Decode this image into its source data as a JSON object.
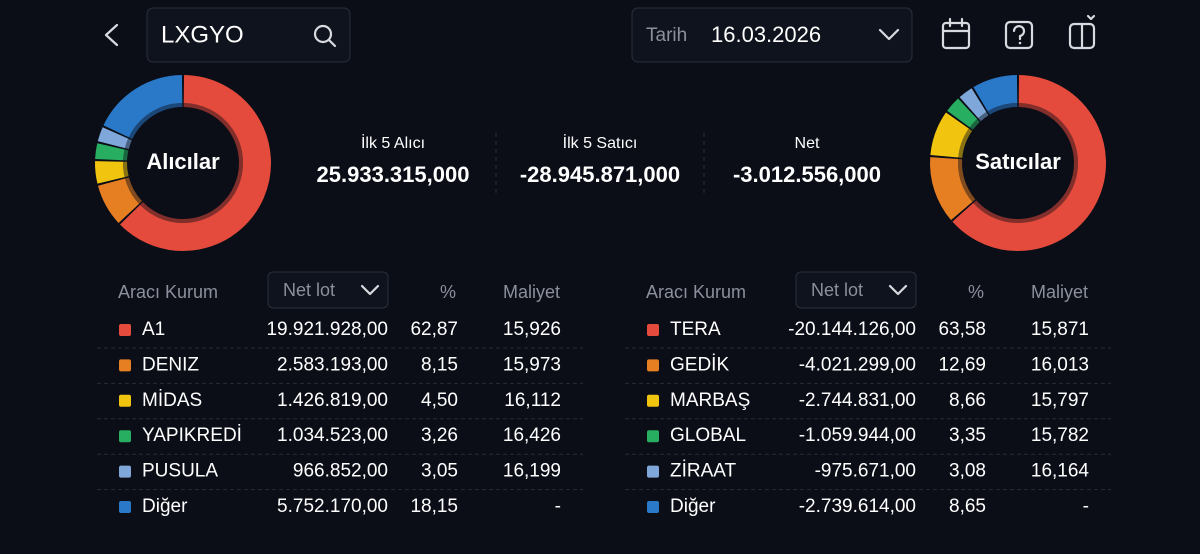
{
  "header": {
    "symbol": "LXGYO",
    "date_label": "Tarih",
    "date": "16.03.2026"
  },
  "summary": [
    {
      "label": "İlk 5 Alıcı",
      "value": "25.933.315,000",
      "color": "#ffffff"
    },
    {
      "label": "İlk 5 Satıcı",
      "value": "-28.945.871,000",
      "color": "#ffffff"
    },
    {
      "label": "Net",
      "value": "-3.012.556,000",
      "color": "#e8493e"
    }
  ],
  "buyers": {
    "title": "Alıcılar",
    "columns": [
      "Aracı Kurum",
      "Net lot",
      "%",
      "Maliyet"
    ],
    "rows": [
      {
        "name": "A1",
        "net_lot": "19.921.928,00",
        "pct": {
          "value": 62.87,
          "label": "62,87"
        },
        "cost": "15,926",
        "color": "#e54b3c"
      },
      {
        "name": "DENIZ",
        "net_lot": "2.583.193,00",
        "pct": {
          "value": 8.15,
          "label": "8,15"
        },
        "cost": "15,973",
        "color": "#e67e22"
      },
      {
        "name": "MİDAS",
        "net_lot": "1.426.819,00",
        "pct": {
          "value": 4.5,
          "label": "4,50"
        },
        "cost": "16,112",
        "color": "#f1c40f"
      },
      {
        "name": "YAPIKREDİ",
        "net_lot": "1.034.523,00",
        "pct": {
          "value": 3.26,
          "label": "3,26"
        },
        "cost": "16,426",
        "color": "#27ae60"
      },
      {
        "name": "PUSULA",
        "net_lot": "966.852,00",
        "pct": {
          "value": 3.05,
          "label": "3,05"
        },
        "cost": "16,199",
        "color": "#7fa7d9"
      },
      {
        "name": "Diğer",
        "net_lot": "5.752.170,00",
        "pct": {
          "value": 18.15,
          "label": "18,15"
        },
        "cost": "-",
        "color": "#2a78c8"
      }
    ]
  },
  "sellers": {
    "title": "Satıcılar",
    "columns": [
      "Aracı Kurum",
      "Net lot",
      "%",
      "Maliyet"
    ],
    "rows": [
      {
        "name": "TERA",
        "net_lot": "-20.144.126,00",
        "pct": {
          "value": 63.58,
          "label": "63,58"
        },
        "cost": "15,871",
        "color": "#e54b3c"
      },
      {
        "name": "GEDİK",
        "net_lot": "-4.021.299,00",
        "pct": {
          "value": 12.69,
          "label": "12,69"
        },
        "cost": "16,013",
        "color": "#e67e22"
      },
      {
        "name": "MARBAŞ",
        "net_lot": "-2.744.831,00",
        "pct": {
          "value": 8.66,
          "label": "8,66"
        },
        "cost": "15,797",
        "color": "#f1c40f"
      },
      {
        "name": "GLOBAL",
        "net_lot": "-1.059.944,00",
        "pct": {
          "value": 3.35,
          "label": "3,35"
        },
        "cost": "15,782",
        "color": "#27ae60"
      },
      {
        "name": "ZİRAAT",
        "net_lot": "-975.671,00",
        "pct": {
          "value": 3.08,
          "label": "3,08"
        },
        "cost": "16,164",
        "color": "#7fa7d9"
      },
      {
        "name": "Diğer",
        "net_lot": "-2.739.614,00",
        "pct": {
          "value": 8.65,
          "label": "8,65"
        },
        "cost": "-",
        "color": "#2a78c8"
      }
    ]
  }
}
